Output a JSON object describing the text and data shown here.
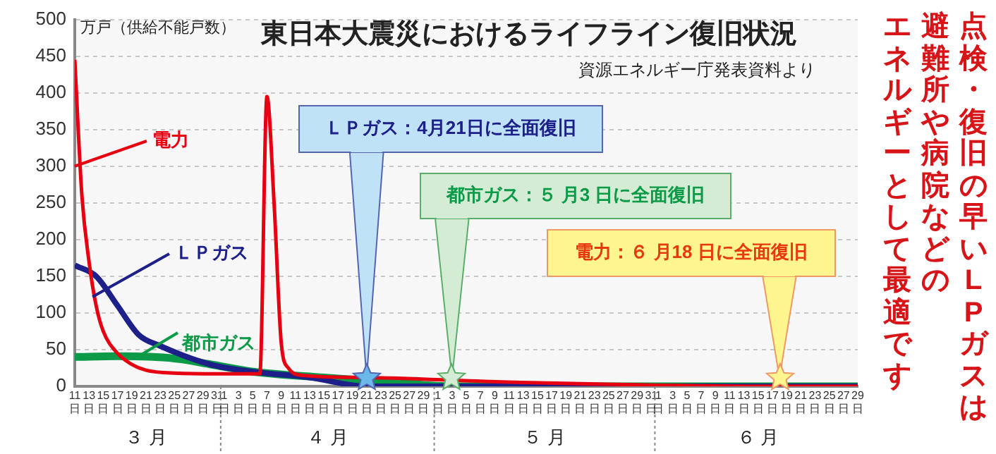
{
  "chart_data": {
    "type": "line",
    "title": "東日本大震災におけるライフライン復旧状況",
    "ylabel": "万戸（供給不能戸数）",
    "series": [
      {
        "name": "電力",
        "color": "#e60012",
        "x": [
          "--03-11",
          "--03-12",
          "--03-13",
          "--03-14",
          "--03-15",
          "--03-17",
          "--03-19",
          "--03-21",
          "--03-25",
          "--04-01",
          "--04-06",
          "--04-07",
          "--04-08",
          "--04-09",
          "--04-10",
          "--04-12",
          "--04-21",
          "--05-10",
          "--06-18",
          "--06-29"
        ],
        "values": [
          445,
          260,
          170,
          110,
          75,
          45,
          30,
          22,
          18,
          17,
          17,
          395,
          250,
          60,
          25,
          15,
          12,
          6,
          0,
          0
        ]
      },
      {
        "name": "ＬＰガス",
        "color": "#1d2088",
        "x": [
          "--03-11",
          "--03-14",
          "--03-17",
          "--03-20",
          "--03-23",
          "--03-30",
          "--04-05",
          "--04-13",
          "--04-21",
          "--06-29"
        ],
        "values": [
          165,
          150,
          110,
          70,
          55,
          30,
          20,
          12,
          0,
          0
        ]
      },
      {
        "name": "都市ガス",
        "color": "#0a9a48",
        "x": [
          "--03-11",
          "--03-17",
          "--03-25",
          "--03-30",
          "--04-05",
          "--04-15",
          "--04-25",
          "--05-03",
          "--06-29"
        ],
        "values": [
          40,
          41,
          38,
          30,
          20,
          12,
          5,
          0,
          0
        ]
      }
    ],
    "xlim": [
      "--03-11",
      "--06-29"
    ],
    "xticks": [
      {
        "value": "--03-11",
        "label": "11\n日"
      },
      {
        "value": "--03-13",
        "label": "13\n日"
      },
      {
        "value": "--03-15",
        "label": "15\n日"
      },
      {
        "value": "--03-17",
        "label": "17\n日"
      },
      {
        "value": "--03-19",
        "label": "19\n日"
      },
      {
        "value": "--03-21",
        "label": "21\n日"
      },
      {
        "value": "--03-23",
        "label": "23\n日"
      },
      {
        "value": "--03-25",
        "label": "25\n日"
      },
      {
        "value": "--03-27",
        "label": "27\n日"
      },
      {
        "value": "--03-29",
        "label": "29\n日"
      },
      {
        "value": "--03-31",
        "label": "31\n日"
      },
      {
        "value": "--04-01",
        "label": "1\n日"
      },
      {
        "value": "--04-03",
        "label": "3\n日"
      },
      {
        "value": "--04-05",
        "label": "5\n日"
      },
      {
        "value": "--04-07",
        "label": "7\n日"
      },
      {
        "value": "--04-09",
        "label": "9\n日"
      },
      {
        "value": "--04-11",
        "label": "11\n日"
      },
      {
        "value": "--04-13",
        "label": "13\n日"
      },
      {
        "value": "--04-15",
        "label": "15\n日"
      },
      {
        "value": "--04-17",
        "label": "17\n日"
      },
      {
        "value": "--04-19",
        "label": "19\n日"
      },
      {
        "value": "--04-21",
        "label": "21\n日"
      },
      {
        "value": "--04-23",
        "label": "23\n日"
      },
      {
        "value": "--04-25",
        "label": "25\n日"
      },
      {
        "value": "--04-27",
        "label": "27\n日"
      },
      {
        "value": "--04-29",
        "label": "29\n日"
      },
      {
        "value": "--05-01",
        "label": "1\n日"
      },
      {
        "value": "--05-03",
        "label": "3\n日"
      },
      {
        "value": "--05-05",
        "label": "5\n日"
      },
      {
        "value": "--05-07",
        "label": "7\n日"
      },
      {
        "value": "--05-09",
        "label": "9\n日"
      },
      {
        "value": "--05-11",
        "label": "11\n日"
      },
      {
        "value": "--05-13",
        "label": "13\n日"
      },
      {
        "value": "--05-15",
        "label": "15\n日"
      },
      {
        "value": "--05-17",
        "label": "17\n日"
      },
      {
        "value": "--05-19",
        "label": "19\n日"
      },
      {
        "value": "--05-21",
        "label": "21\n日"
      },
      {
        "value": "--05-23",
        "label": "23\n日"
      },
      {
        "value": "--05-25",
        "label": "25\n日"
      },
      {
        "value": "--05-27",
        "label": "27\n日"
      },
      {
        "value": "--05-29",
        "label": "29\n日"
      },
      {
        "value": "--05-31",
        "label": "31\n日"
      },
      {
        "value": "--06-01",
        "label": "1\n日"
      },
      {
        "value": "--06-03",
        "label": "3\n日"
      },
      {
        "value": "--06-05",
        "label": "5\n日"
      },
      {
        "value": "--06-07",
        "label": "7\n日"
      },
      {
        "value": "--06-09",
        "label": "9\n日"
      },
      {
        "value": "--06-11",
        "label": "11\n日"
      },
      {
        "value": "--06-13",
        "label": "13\n日"
      },
      {
        "value": "--06-15",
        "label": "15\n日"
      },
      {
        "value": "--06-17",
        "label": "17\n日"
      },
      {
        "value": "--06-19",
        "label": "19\n日"
      },
      {
        "value": "--06-21",
        "label": "21\n日"
      },
      {
        "value": "--06-23",
        "label": "23\n日"
      },
      {
        "value": "--06-25",
        "label": "25\n日"
      },
      {
        "value": "--06-27",
        "label": "27\n日"
      },
      {
        "value": "--06-29",
        "label": "29\n日"
      }
    ],
    "ylim": [
      0,
      500
    ],
    "yticks": [
      0,
      50,
      100,
      150,
      200,
      250,
      300,
      350,
      400,
      450,
      500
    ],
    "grid": "y",
    "legend": false,
    "marker": "none",
    "line_style": "solid",
    "annotations": [
      "資源エネルギー庁発表資料より",
      {
        "text": "ＬＰガス：4月21日に全面復旧",
        "x": "--04-21",
        "y": 0
      },
      {
        "text": "都市ガス：５ 月3 日に全面復旧",
        "x": "--05-03",
        "y": 0
      },
      {
        "text": "電力：６ 月18 日に全面復旧",
        "x": "--06-18",
        "y": 0
      },
      "３ 月",
      "４ 月",
      "５ 月",
      "６ 月",
      "点検・復旧の早いLPガスは",
      "避難所や病院などの",
      "エネルギーとして最適です"
    ]
  }
}
